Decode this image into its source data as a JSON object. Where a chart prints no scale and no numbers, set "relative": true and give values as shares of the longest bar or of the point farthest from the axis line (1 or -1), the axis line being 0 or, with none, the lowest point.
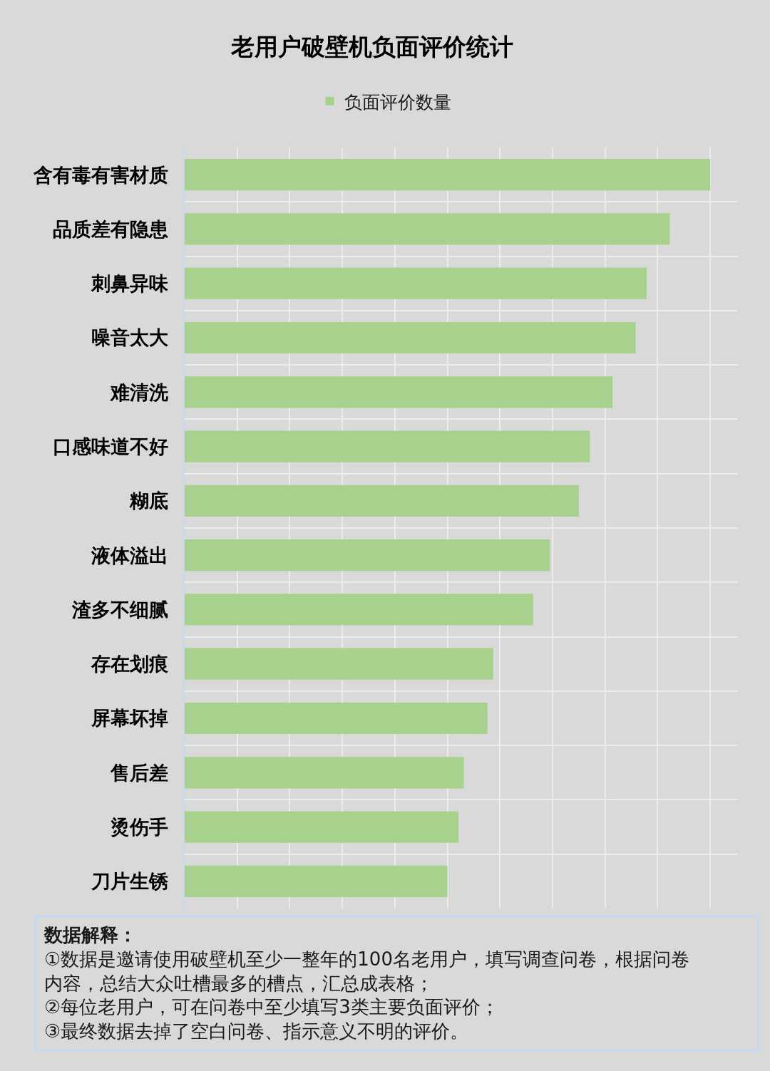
{
  "chart_data": {
    "type": "bar",
    "orientation": "horizontal",
    "relative": true,
    "title": "老用户破壁机负面评价统计",
    "categories": [
      "含有毒有害材质",
      "品质差有隐患",
      "刺鼻异味",
      "噪音太大",
      "难清洗",
      "口感味道不好",
      "糊底",
      "液体溢出",
      "渣多不细腻",
      "存在划痕",
      "屏幕坏掉",
      "售后差",
      "烫伤手",
      "刀片生锈"
    ],
    "series": [
      {
        "name": "负面评价数量",
        "color": "#a9d18e",
        "values": [
          1,
          0.923,
          0.879,
          0.858,
          0.814,
          0.771,
          0.75,
          0.695,
          0.663,
          0.587,
          0.576,
          0.531,
          0.521,
          0.5
        ]
      }
    ],
    "legend": "top",
    "grid": true,
    "annotations": [
      "数据解释：",
      "①数据是邀请使用破壁机至少一整年的100名老用户，填写调查问卷，根据问卷内容，总结大众吐槽最多的槽点，汇总成表格；",
      "②每位老用户，可在问卷中至少填写3类主要负面评价；",
      "③最终数据去掉了空白问卷、指示意义不明的评价。"
    ]
  }
}
